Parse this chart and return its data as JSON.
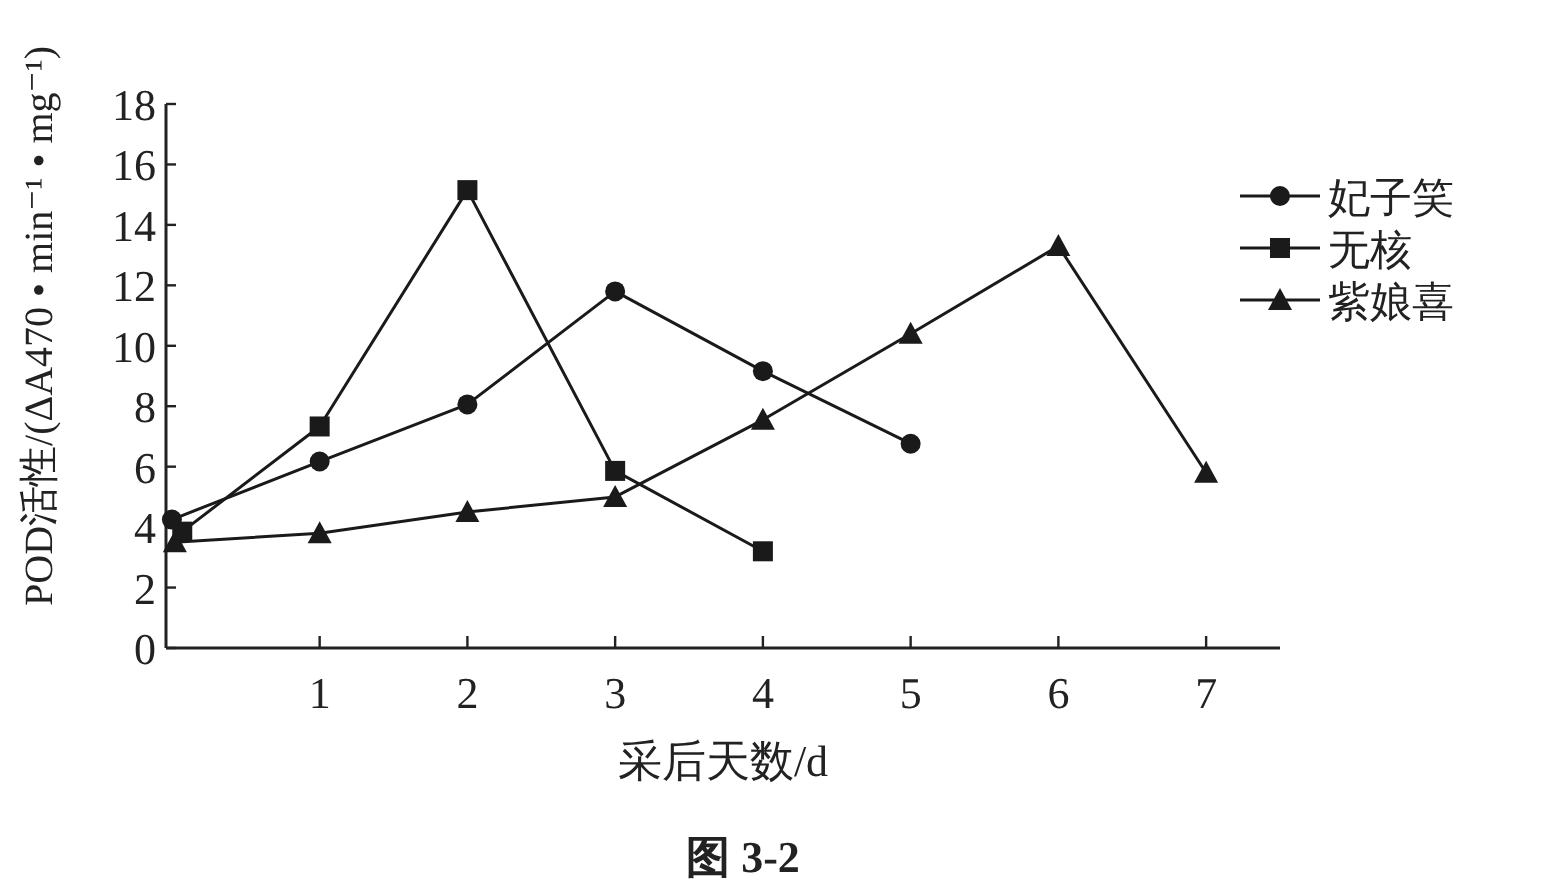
{
  "chart_data": {
    "type": "line",
    "xlabel": "采后天数/d",
    "ylabel": "POD活性/(ΔA470 • min⁻¹ • mg⁻¹)",
    "annotations": [
      "图 3-2"
    ],
    "xlim": [
      -0.04,
      7.5
    ],
    "xticks": [
      1,
      2,
      3,
      4,
      5,
      6,
      7
    ],
    "ylim": [
      0,
      18
    ],
    "yticks": [
      0,
      2,
      4,
      6,
      8,
      10,
      12,
      14,
      16,
      18
    ],
    "grid": false,
    "legend": "top right",
    "series": [
      {
        "name": "妃子笑",
        "color": "#1a1a1a",
        "marker": "circle",
        "x": [
          0,
          1,
          2,
          3,
          4,
          5
        ],
        "values": [
          4.25,
          6.17,
          8.06,
          11.8,
          9.16,
          6.76
        ]
      },
      {
        "name": "无核",
        "color": "#1a1a1a",
        "marker": "square",
        "x": [
          0.07,
          1,
          2,
          3,
          4
        ],
        "values": [
          3.85,
          7.33,
          15.15,
          5.86,
          3.2
        ]
      },
      {
        "name": "紫娘喜",
        "color": "#1a1a1a",
        "marker": "triangle",
        "x": [
          0.02,
          1,
          2,
          3,
          4,
          5,
          6,
          7
        ],
        "values": [
          3.5,
          3.8,
          4.5,
          5.0,
          7.55,
          10.4,
          13.3,
          5.8
        ]
      }
    ]
  }
}
